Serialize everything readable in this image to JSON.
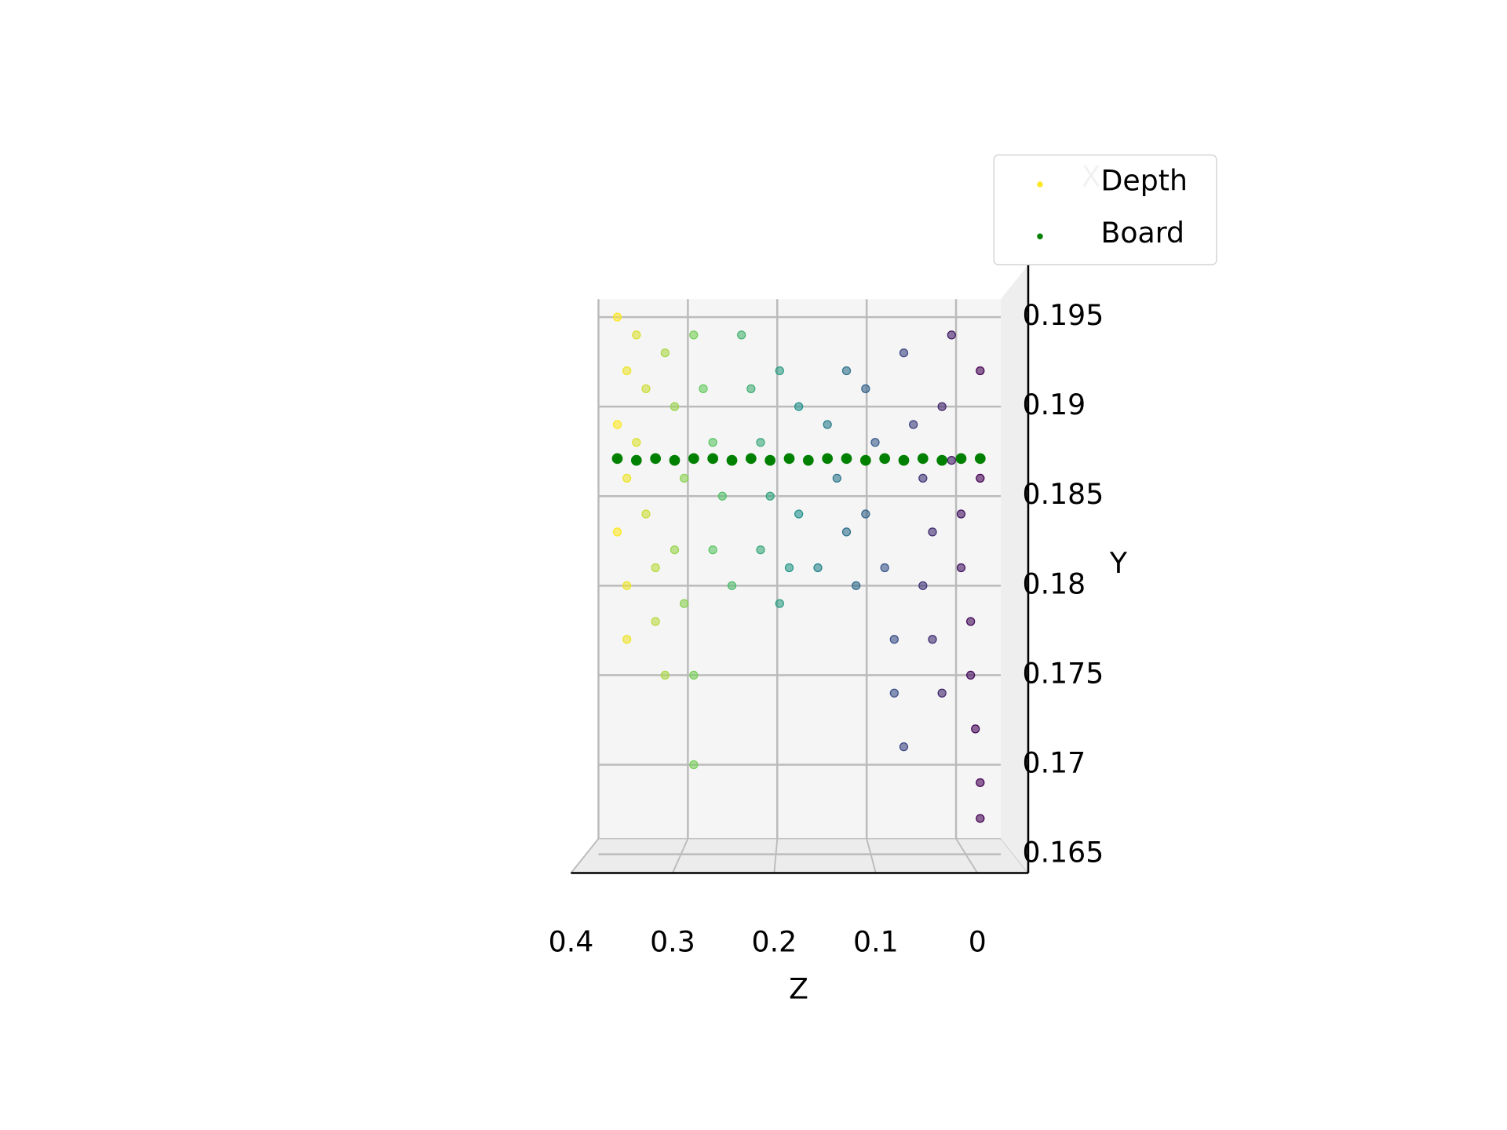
{
  "chart_data": {
    "type": "scatter",
    "xlabel": "Z",
    "ylabel": "Y",
    "zlabel": "X",
    "xlim": [
      0.4,
      -0.05
    ],
    "xticks": [
      0.4,
      0.3,
      0.2,
      0.1,
      0.0
    ],
    "ylim": [
      0.1645,
      0.196
    ],
    "yticks": [
      0.165,
      0.17,
      0.175,
      0.18,
      0.185,
      0.19,
      0.195
    ],
    "grid": true,
    "legend": "upper right",
    "series": [
      {
        "name": "Depth",
        "colormap": "viridis",
        "color": "#fde725",
        "x": [
          0.37,
          0.36,
          0.37,
          0.36,
          0.37,
          0.36,
          0.36,
          0.35,
          0.34,
          0.35,
          0.34,
          0.33,
          0.33,
          0.32,
          0.32,
          0.31,
          0.3,
          0.31,
          0.3,
          0.29,
          0.29,
          0.29,
          0.28,
          0.27,
          0.26,
          0.27,
          0.25,
          0.24,
          0.23,
          0.22,
          0.21,
          0.22,
          0.2,
          0.2,
          0.18,
          0.17,
          0.18,
          0.16,
          0.19,
          0.15,
          0.14,
          0.13,
          0.12,
          0.13,
          0.11,
          0.1,
          0.11,
          0.09,
          0.08,
          0.08,
          0.07,
          0.07,
          0.06,
          0.05,
          0.04,
          0.05,
          0.04,
          0.03,
          0.03,
          0.02,
          0.01,
          0.01,
          0.0,
          0.0,
          -0.005,
          -0.01,
          -0.01,
          0.02,
          -0.01,
          -0.01
        ],
        "values": [
          0.195,
          0.192,
          0.189,
          0.186,
          0.183,
          0.18,
          0.177,
          0.194,
          0.191,
          0.188,
          0.184,
          0.181,
          0.178,
          0.175,
          0.193,
          0.19,
          0.186,
          0.182,
          0.179,
          0.175,
          0.17,
          0.194,
          0.191,
          0.188,
          0.185,
          0.182,
          0.18,
          0.194,
          0.191,
          0.188,
          0.185,
          0.182,
          0.179,
          0.192,
          0.19,
          0.187,
          0.184,
          0.181,
          0.181,
          0.189,
          0.186,
          0.183,
          0.18,
          0.192,
          0.191,
          0.188,
          0.184,
          0.181,
          0.177,
          0.174,
          0.171,
          0.193,
          0.189,
          0.186,
          0.183,
          0.18,
          0.177,
          0.174,
          0.19,
          0.187,
          0.184,
          0.181,
          0.178,
          0.175,
          0.172,
          0.169,
          0.167,
          0.194,
          0.192,
          0.186
        ]
      },
      {
        "name": "Board",
        "color": "#008000",
        "x": [
          0.37,
          0.35,
          0.33,
          0.31,
          0.29,
          0.27,
          0.25,
          0.23,
          0.21,
          0.19,
          0.17,
          0.15,
          0.13,
          0.11,
          0.09,
          0.07,
          0.05,
          0.03,
          0.01,
          -0.01
        ],
        "values": [
          0.1871,
          0.187,
          0.1871,
          0.187,
          0.1871,
          0.1871,
          0.187,
          0.1871,
          0.187,
          0.1871,
          0.187,
          0.1871,
          0.1871,
          0.187,
          0.1871,
          0.187,
          0.1871,
          0.187,
          0.1871,
          0.1871
        ]
      }
    ]
  }
}
